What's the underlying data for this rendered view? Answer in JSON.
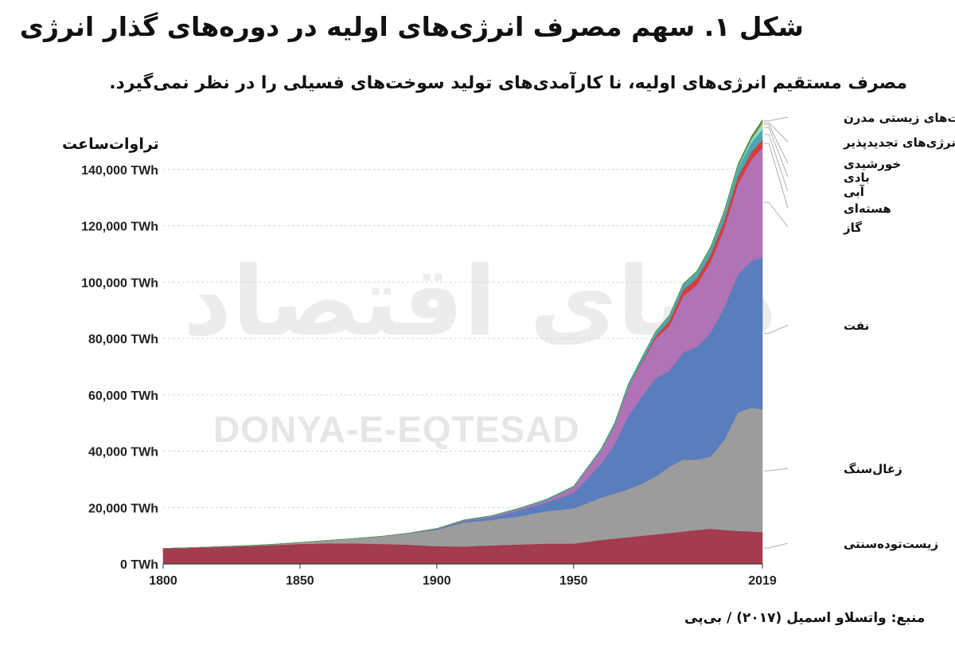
{
  "title": "شکل ۱. سهم مصرف انرژی‌های اولیه در دوره‌های گذار انرژی",
  "subtitle": "مصرف مستقیم انرژی‌های اولیه، نا کارآمدی‌های تولید سوخت‌های فسیلی را در نظر نمی‌گیرد.",
  "unit_label": "تراوات‌ساعت",
  "source": "منبع: واتسلاو اسمیل (۲۰۱۷) / بی‌پی",
  "watermark": {
    "fa": "دنیای اقتصاد",
    "en": "DONYA-E-EQTESAD"
  },
  "chart_data": {
    "type": "area",
    "stacked": true,
    "x": [
      1800,
      1810,
      1820,
      1830,
      1840,
      1850,
      1860,
      1870,
      1880,
      1890,
      1900,
      1910,
      1920,
      1930,
      1940,
      1950,
      1960,
      1965,
      1970,
      1975,
      1980,
      1985,
      1990,
      1995,
      2000,
      2005,
      2010,
      2015,
      2019
    ],
    "xlim": [
      1800,
      2019
    ],
    "x_ticks": [
      "1800",
      "1850",
      "1900",
      "1950",
      "2019"
    ],
    "ylim": [
      0,
      160000
    ],
    "y_ticks": [
      "0 TWh",
      "20,000 TWh",
      "40,000 TWh",
      "60,000 TWh",
      "80,000 TWh",
      "100,000 TWh",
      "120,000 TWh",
      "140,000 TWh"
    ],
    "grid": true,
    "series": [
      {
        "name": "زیست‌توده‌سنتی",
        "color": "#a33c4e",
        "values": [
          5500,
          5700,
          6000,
          6300,
          6700,
          7100,
          7300,
          7300,
          7100,
          6800,
          6300,
          6200,
          6600,
          6900,
          7200,
          7200,
          8500,
          9000,
          9500,
          10000,
          10500,
          11000,
          11500,
          12000,
          12500,
          12000,
          11700,
          11500,
          11300
        ]
      },
      {
        "name": "زغال‌سنگ",
        "color": "#9c9c9c",
        "values": [
          0,
          50,
          100,
          150,
          250,
          500,
          1000,
          1700,
          2700,
          4000,
          5800,
          8500,
          9000,
          10000,
          11500,
          12500,
          15000,
          16000,
          17000,
          18500,
          20500,
          23500,
          25500,
          25000,
          25500,
          32000,
          42000,
          44000,
          43500
        ]
      },
      {
        "name": "نفت",
        "color": "#5a7dbd",
        "values": [
          0,
          0,
          0,
          0,
          0,
          0,
          0,
          0,
          0,
          100,
          300,
          600,
          1000,
          2000,
          3000,
          5500,
          12000,
          17500,
          26000,
          31000,
          35000,
          34000,
          38000,
          40000,
          44000,
          47000,
          49000,
          52000,
          54000
        ]
      },
      {
        "name": "گاز",
        "color": "#b073b6",
        "values": [
          0,
          0,
          0,
          0,
          0,
          0,
          0,
          0,
          0,
          50,
          100,
          200,
          300,
          500,
          800,
          2000,
          4500,
          6500,
          10000,
          12000,
          14000,
          16000,
          20000,
          22000,
          25000,
          28000,
          32000,
          36000,
          39000
        ]
      },
      {
        "name": "هسته‌ای",
        "color": "#d53d3d",
        "values": [
          0,
          0,
          0,
          0,
          0,
          0,
          0,
          0,
          0,
          0,
          0,
          0,
          0,
          0,
          0,
          0,
          10,
          50,
          150,
          500,
          900,
          1800,
          2200,
          2400,
          2600,
          2800,
          2800,
          2700,
          2800
        ]
      },
      {
        "name": "آبی",
        "color": "#4aa8b0",
        "values": [
          0,
          0,
          0,
          0,
          0,
          0,
          0,
          0,
          0,
          0,
          50,
          100,
          200,
          300,
          400,
          350,
          700,
          900,
          1100,
          1300,
          1500,
          1700,
          1900,
          2100,
          2300,
          2600,
          3000,
          3400,
          3600
        ]
      },
      {
        "name": "بادی",
        "color": "#8ad7e0",
        "values": [
          0,
          0,
          0,
          0,
          0,
          0,
          0,
          0,
          0,
          0,
          0,
          0,
          0,
          0,
          0,
          0,
          0,
          0,
          0,
          0,
          0,
          0,
          0,
          0,
          50,
          100,
          300,
          800,
          1400
        ]
      },
      {
        "name": "خورشیدی",
        "color": "#e9c44c",
        "values": [
          0,
          0,
          0,
          0,
          0,
          0,
          0,
          0,
          0,
          0,
          0,
          0,
          0,
          0,
          0,
          0,
          0,
          0,
          0,
          0,
          0,
          0,
          0,
          0,
          0,
          10,
          30,
          250,
          700
        ]
      },
      {
        "name": "سایر انرژی‌های تجدیدپذیر",
        "color": "#6fb36f",
        "values": [
          0,
          0,
          0,
          0,
          0,
          0,
          0,
          0,
          0,
          0,
          0,
          0,
          0,
          0,
          0,
          0,
          0,
          0,
          0,
          0,
          50,
          100,
          150,
          200,
          250,
          300,
          400,
          500,
          600
        ]
      },
      {
        "name": "سوخت‌های زیستی مدرن",
        "color": "#3e8a4c",
        "values": [
          0,
          0,
          0,
          0,
          0,
          0,
          0,
          0,
          0,
          0,
          0,
          0,
          0,
          0,
          0,
          0,
          0,
          0,
          0,
          0,
          50,
          100,
          150,
          200,
          250,
          350,
          500,
          600,
          700
        ]
      }
    ]
  }
}
